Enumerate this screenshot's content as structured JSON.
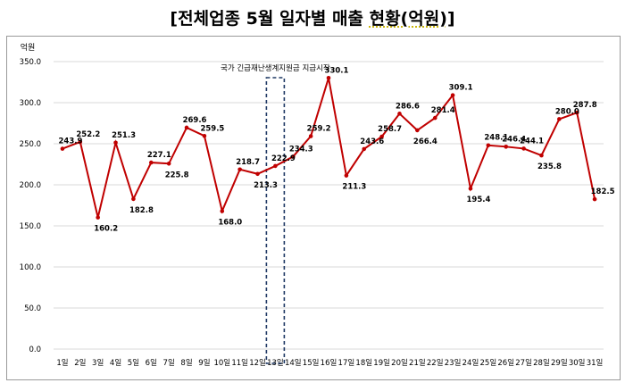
{
  "page_title": {
    "prefix": "[전체업종 5월 일자별 매출 ",
    "highlight": "현황(억원)",
    "suffix": "]"
  },
  "colors": {
    "line": "#c00000",
    "marker": "#c00000",
    "grid": "#d9d9d9",
    "annotation_box": "#1f3864"
  },
  "chart_data": {
    "type": "line",
    "title": "[전체업종 5월 일자별 매출 현황(억원)]",
    "ylabel": "억원",
    "xlabel": "",
    "ylim": [
      0,
      350
    ],
    "yticks": [
      "0.0",
      "50.0",
      "100.0",
      "150.0",
      "200.0",
      "250.0",
      "300.0",
      "350.0"
    ],
    "grid": true,
    "legend": "none",
    "categories": [
      "1일",
      "2일",
      "3일",
      "4일",
      "5일",
      "6일",
      "7일",
      "8일",
      "9일",
      "10일",
      "11일",
      "12일",
      "13일",
      "14일",
      "15일",
      "16일",
      "17일",
      "18일",
      "19일",
      "20일",
      "21일",
      "22일",
      "23일",
      "24일",
      "25일",
      "26일",
      "27일",
      "28일",
      "29일",
      "30일",
      "31일"
    ],
    "series": [
      {
        "values": [
          243.9,
          252.2,
          160.2,
          251.3,
          182.8,
          227.1,
          225.8,
          269.6,
          259.5,
          168.0,
          218.7,
          213.3,
          222.9,
          234.3,
          259.2,
          330.1,
          211.3,
          243.6,
          258.7,
          286.6,
          266.4,
          281.4,
          309.1,
          195.4,
          248.1,
          246.4,
          244.1,
          235.8,
          280.0,
          287.8,
          182.5
        ],
        "labels": [
          "243.9",
          "252.2",
          "160.2",
          "251.3",
          "182.8",
          "227.1",
          "225.8",
          "269.6",
          "259.5",
          "168.0",
          "218.7",
          "213.3",
          "222.9",
          "234.3",
          "259.2",
          "330.1",
          "211.3",
          "243.6",
          "258.7",
          "286.6",
          "266.4",
          "281.4",
          "309.1",
          "195.4",
          "248.1",
          "246.4",
          "244.1",
          "235.8",
          "280.0",
          "287.8",
          "182.5"
        ]
      }
    ],
    "annotation": {
      "text": "국가 긴급재난생계지원금 지급시작",
      "category": "13일"
    }
  }
}
